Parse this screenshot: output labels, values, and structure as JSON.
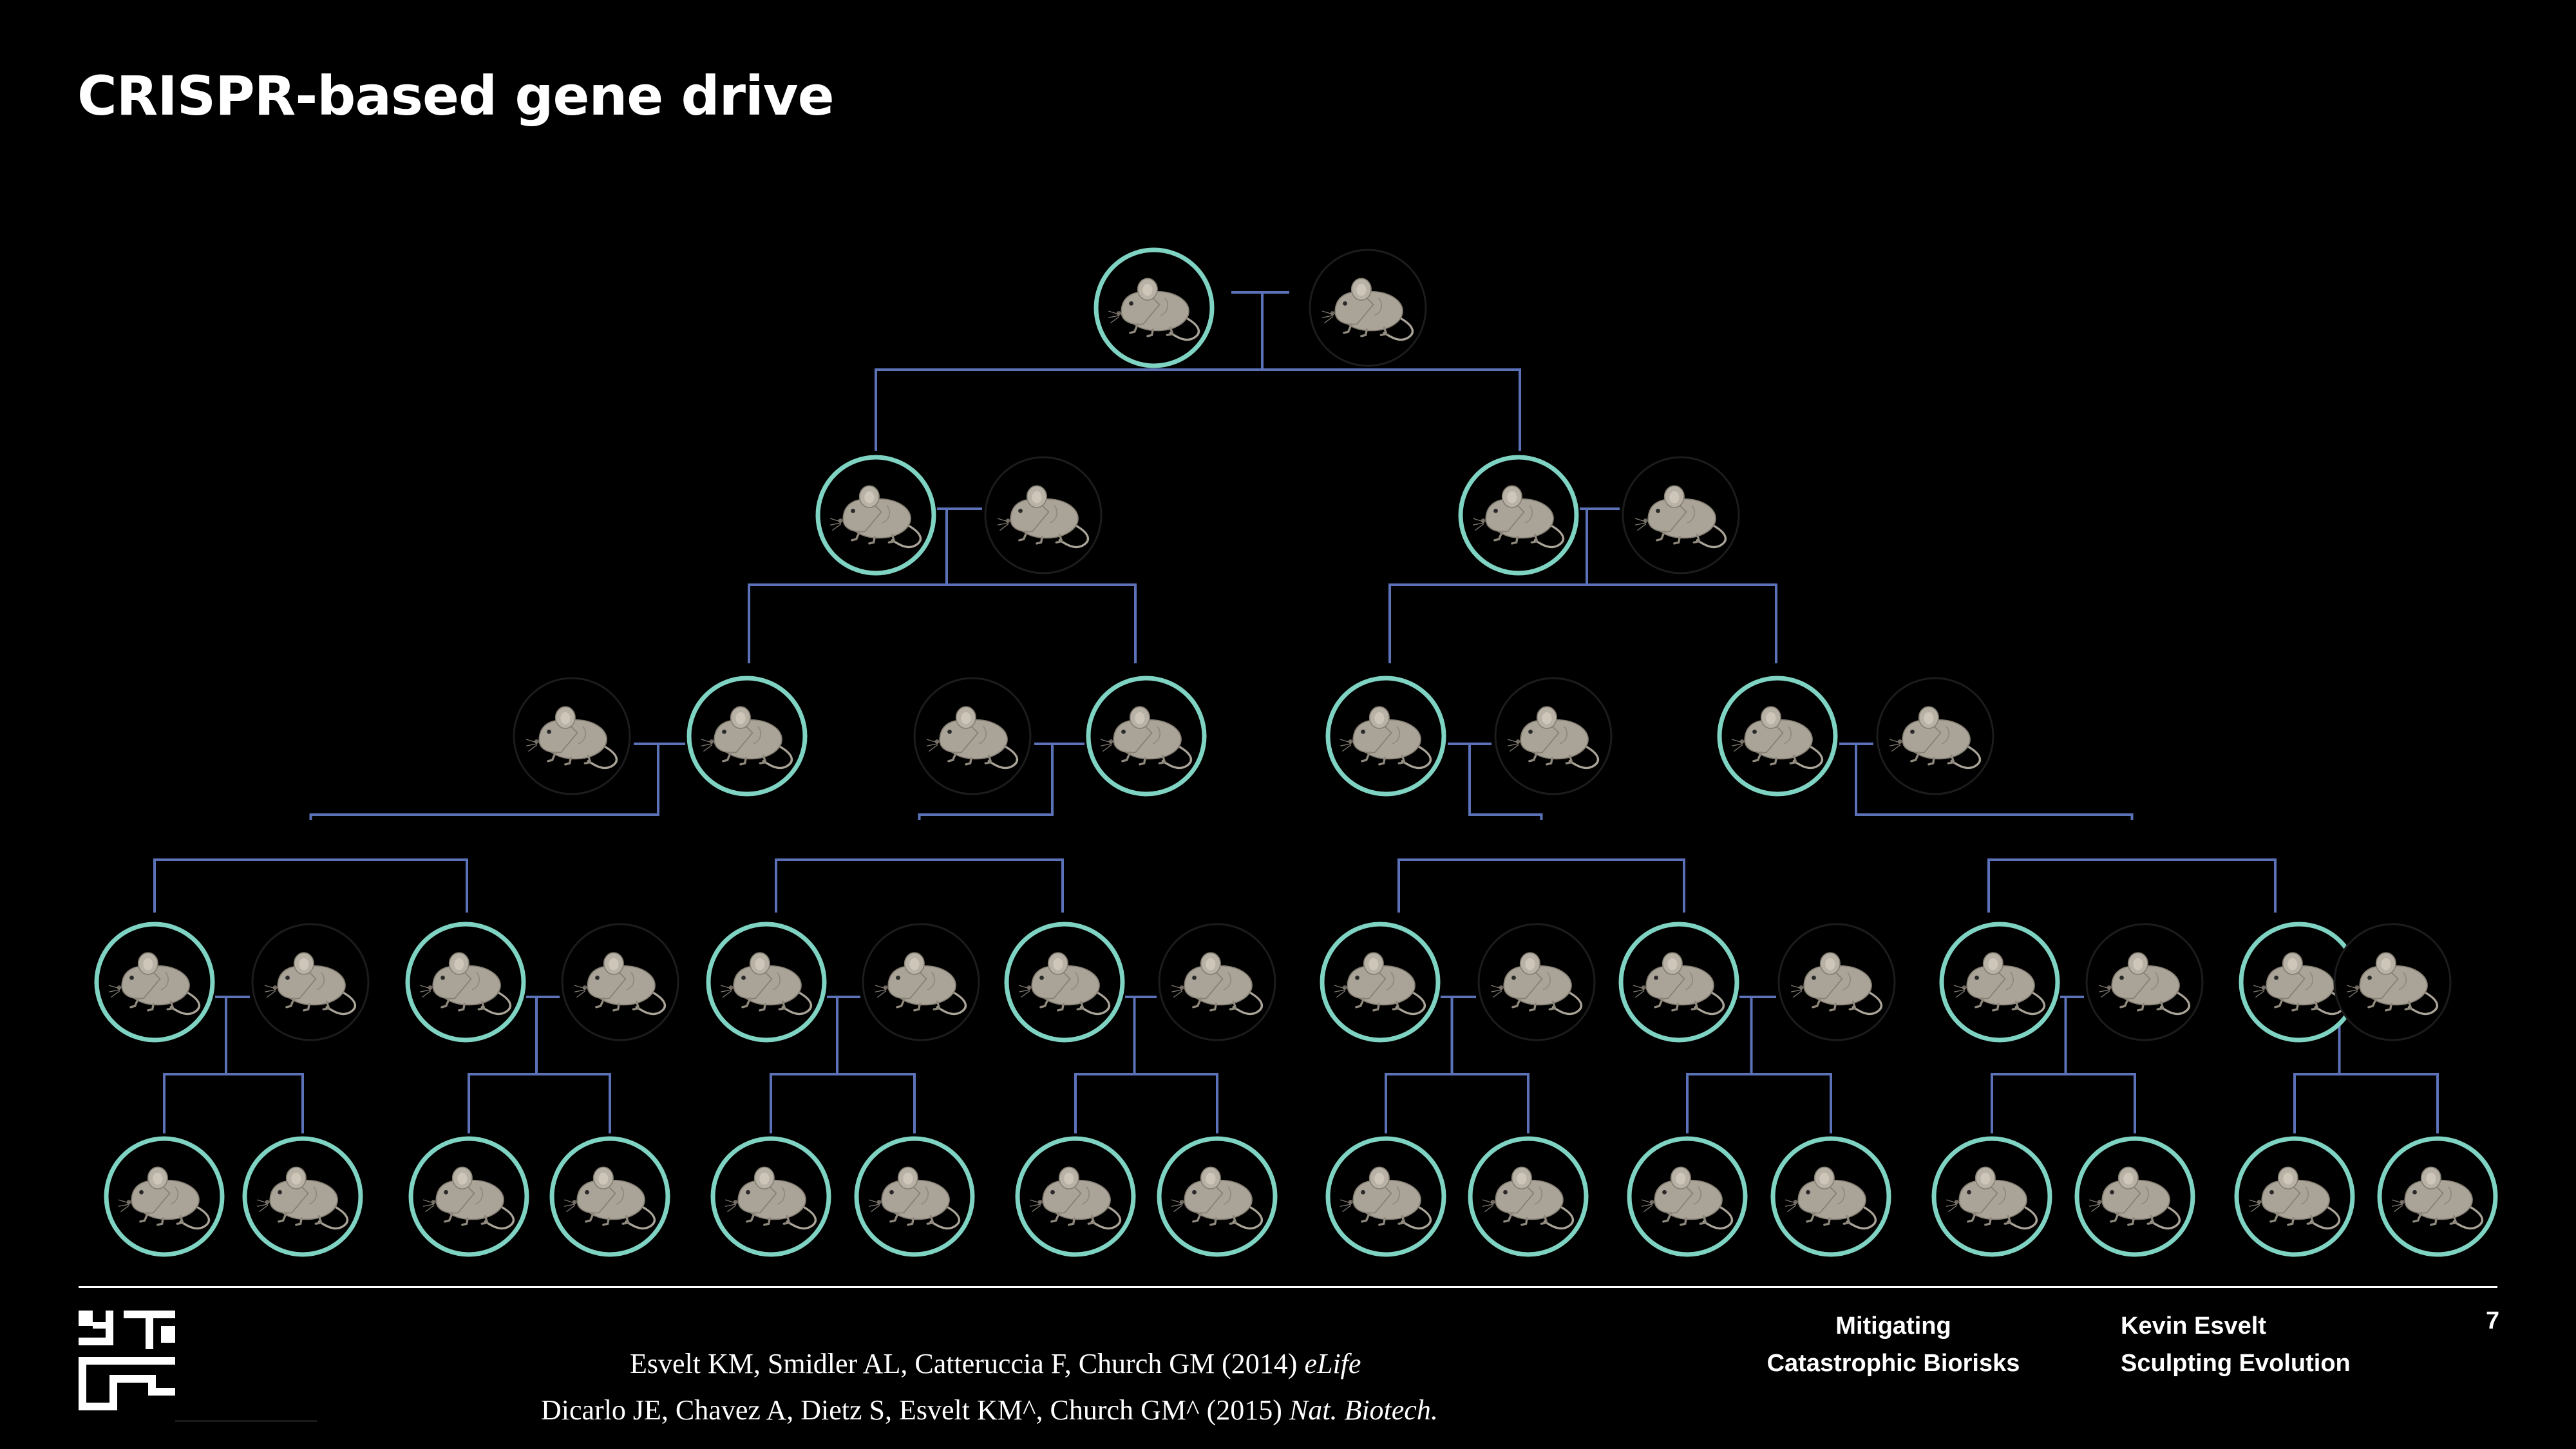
{
  "slide": {
    "title": "CRISPR-based gene drive"
  },
  "colors": {
    "background": "#000000",
    "drive_ring": "#7fd3c2",
    "wild_ring": "#1c1c1c",
    "connector": "#5c72b8",
    "mouse_fill": "#aaa398",
    "mouse_stroke": "#7f786e",
    "text": "#ffffff"
  },
  "icons": {
    "mouse": "mouse-icon",
    "logo": "sculpting-evolution-logo"
  },
  "diagram": {
    "generations": [
      {
        "drive_carriers": 1,
        "wild_mates": 1
      },
      {
        "drive_carriers": 2,
        "wild_mates": 2
      },
      {
        "drive_carriers": 4,
        "wild_mates": 4
      },
      {
        "drive_carriers": 8,
        "wild_mates": 8
      },
      {
        "drive_carriers": 16,
        "wild_mates": 0
      }
    ]
  },
  "citations": {
    "line1_main": "Esvelt KM, Smidler AL, Catteruccia F, Church GM (2014) ",
    "line1_journal": "eLife",
    "line2_main": "Dicarlo JE, Chavez A, Dietz S, Esvelt KM^, Church GM^ (2015) ",
    "line2_journal": "Nat. Biotech."
  },
  "footer": {
    "talk_title_line1": "Mitigating",
    "talk_title_line2": "Catastrophic Biorisks",
    "author": "Kevin Esvelt",
    "lab": "Sculpting Evolution",
    "page_number": "7"
  }
}
